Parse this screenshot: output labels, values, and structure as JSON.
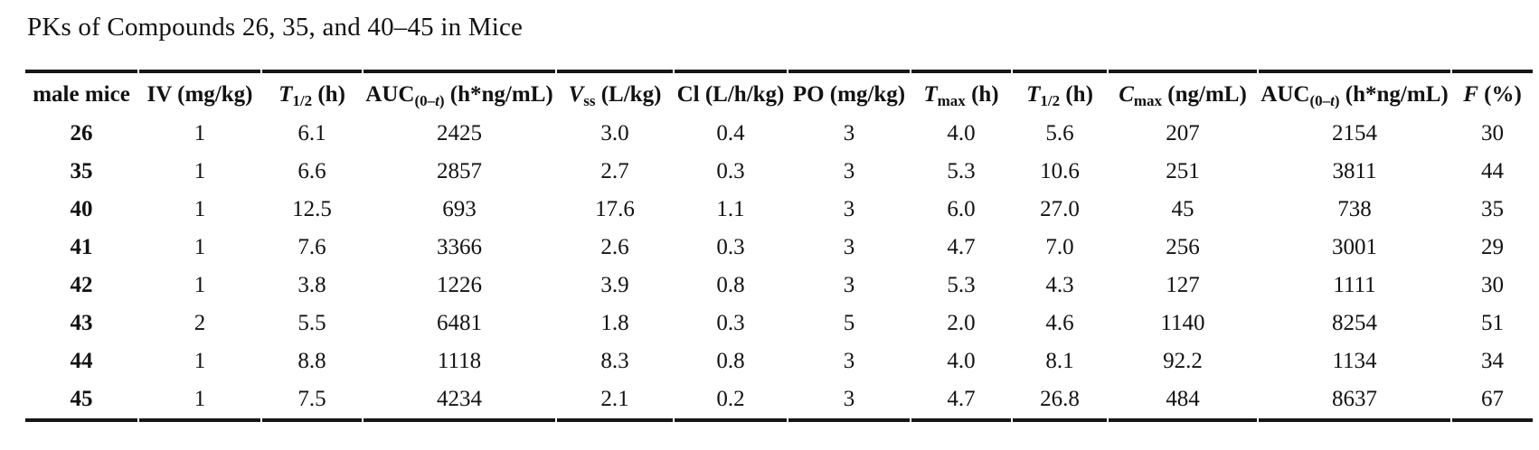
{
  "page": {
    "title": "PKs of Compounds 26, 35, and 40–45 in Mice"
  },
  "colors": {
    "text": "#121212",
    "rule": "#161616",
    "background": "#ffffff"
  },
  "table": {
    "headers": [
      {
        "id": "male-mice",
        "segments": [
          {
            "text": "male mice"
          }
        ]
      },
      {
        "id": "iv-dose",
        "segments": [
          {
            "text": "IV (mg/kg)"
          }
        ]
      },
      {
        "id": "t-half-iv",
        "segments": [
          {
            "text": "T",
            "italic": true
          },
          {
            "text": "1/2",
            "sub": true
          },
          {
            "text": " (h)"
          }
        ]
      },
      {
        "id": "auc-iv",
        "segments": [
          {
            "text": "AUC"
          },
          {
            "text": "(0–",
            "sub": true
          },
          {
            "text": "t",
            "sub": true,
            "italic": true
          },
          {
            "text": ")",
            "sub": true
          },
          {
            "text": " (h*ng/mL)"
          }
        ]
      },
      {
        "id": "vss",
        "segments": [
          {
            "text": "V",
            "italic": true
          },
          {
            "text": "ss",
            "sub": true
          },
          {
            "text": " (L/kg)"
          }
        ]
      },
      {
        "id": "cl",
        "segments": [
          {
            "text": "Cl (L/h/kg)"
          }
        ]
      },
      {
        "id": "po-dose",
        "segments": [
          {
            "text": "PO (mg/kg)"
          }
        ]
      },
      {
        "id": "tmax",
        "segments": [
          {
            "text": "T",
            "italic": true
          },
          {
            "text": "max",
            "sub": true
          },
          {
            "text": " (h)"
          }
        ]
      },
      {
        "id": "t-half-po",
        "segments": [
          {
            "text": "T",
            "italic": true
          },
          {
            "text": "1/2",
            "sub": true
          },
          {
            "text": " (h)"
          }
        ]
      },
      {
        "id": "cmax",
        "segments": [
          {
            "text": "C",
            "italic": true
          },
          {
            "text": "max",
            "sub": true
          },
          {
            "text": " (ng/mL)"
          }
        ]
      },
      {
        "id": "auc-po",
        "segments": [
          {
            "text": "AUC"
          },
          {
            "text": "(0–",
            "sub": true
          },
          {
            "text": "t",
            "sub": true,
            "italic": true
          },
          {
            "text": ")",
            "sub": true
          },
          {
            "text": " (h*ng/mL)"
          }
        ]
      },
      {
        "id": "f-percent",
        "segments": [
          {
            "text": "F",
            "italic": true
          },
          {
            "text": " (%)"
          }
        ]
      }
    ],
    "rows": [
      {
        "compound": "26",
        "values": [
          "1",
          "6.1",
          "2425",
          "3.0",
          "0.4",
          "3",
          "4.0",
          "5.6",
          "207",
          "2154",
          "30"
        ]
      },
      {
        "compound": "35",
        "values": [
          "1",
          "6.6",
          "2857",
          "2.7",
          "0.3",
          "3",
          "5.3",
          "10.6",
          "251",
          "3811",
          "44"
        ]
      },
      {
        "compound": "40",
        "values": [
          "1",
          "12.5",
          "693",
          "17.6",
          "1.1",
          "3",
          "6.0",
          "27.0",
          "45",
          "738",
          "35"
        ]
      },
      {
        "compound": "41",
        "values": [
          "1",
          "7.6",
          "3366",
          "2.6",
          "0.3",
          "3",
          "4.7",
          "7.0",
          "256",
          "3001",
          "29"
        ]
      },
      {
        "compound": "42",
        "values": [
          "1",
          "3.8",
          "1226",
          "3.9",
          "0.8",
          "3",
          "5.3",
          "4.3",
          "127",
          "1111",
          "30"
        ]
      },
      {
        "compound": "43",
        "values": [
          "2",
          "5.5",
          "6481",
          "1.8",
          "0.3",
          "5",
          "2.0",
          "4.6",
          "1140",
          "8254",
          "51"
        ]
      },
      {
        "compound": "44",
        "values": [
          "1",
          "8.8",
          "1118",
          "8.3",
          "0.8",
          "3",
          "4.0",
          "8.1",
          "92.2",
          "1134",
          "34"
        ]
      },
      {
        "compound": "45",
        "values": [
          "1",
          "7.5",
          "4234",
          "2.1",
          "0.2",
          "3",
          "4.7",
          "26.8",
          "484",
          "8637",
          "67"
        ]
      }
    ]
  }
}
